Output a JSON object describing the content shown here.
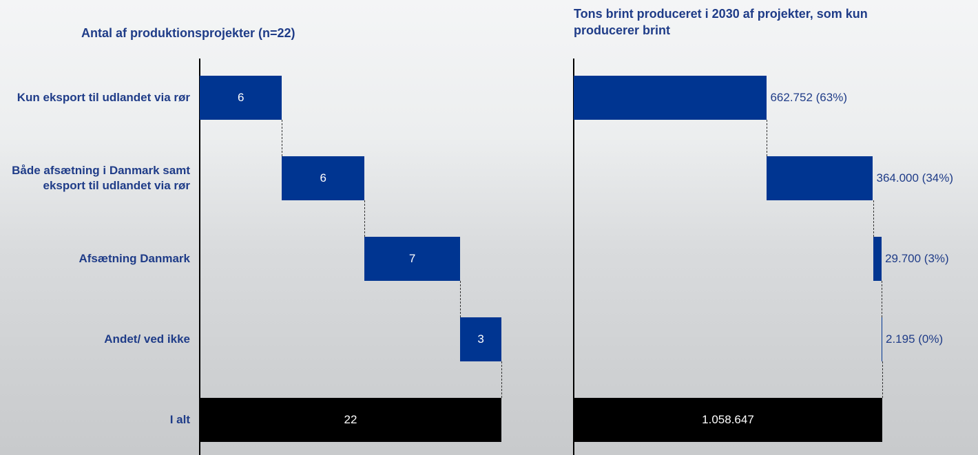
{
  "chart_data": [
    {
      "type": "waterfall",
      "title": "Antal af produktionsprojekter (n=22)",
      "categories": [
        "Kun eksport til udlandet via rør",
        "Både afsætning i Danmark samt eksport til udlandet via rør",
        "Afsætning Danmark",
        "Andet/ ved ikke",
        "I alt"
      ],
      "values": [
        6,
        6,
        7,
        3,
        22
      ],
      "color": "#003591",
      "total_color": "#000000",
      "value_label_position": "inside"
    },
    {
      "type": "waterfall",
      "title": "Tons brint produceret i 2030 af projekter, som kun producerer brint",
      "values": [
        662752,
        364000,
        29700,
        2195,
        1058647
      ],
      "value_labels": [
        "662.752 (63%)",
        "364.000 (34%)",
        "29.700 (3%)",
        "2.195 (0%)",
        "1.058.647"
      ],
      "color": "#003591",
      "total_color": "#000000",
      "value_label_position": "outside"
    }
  ]
}
